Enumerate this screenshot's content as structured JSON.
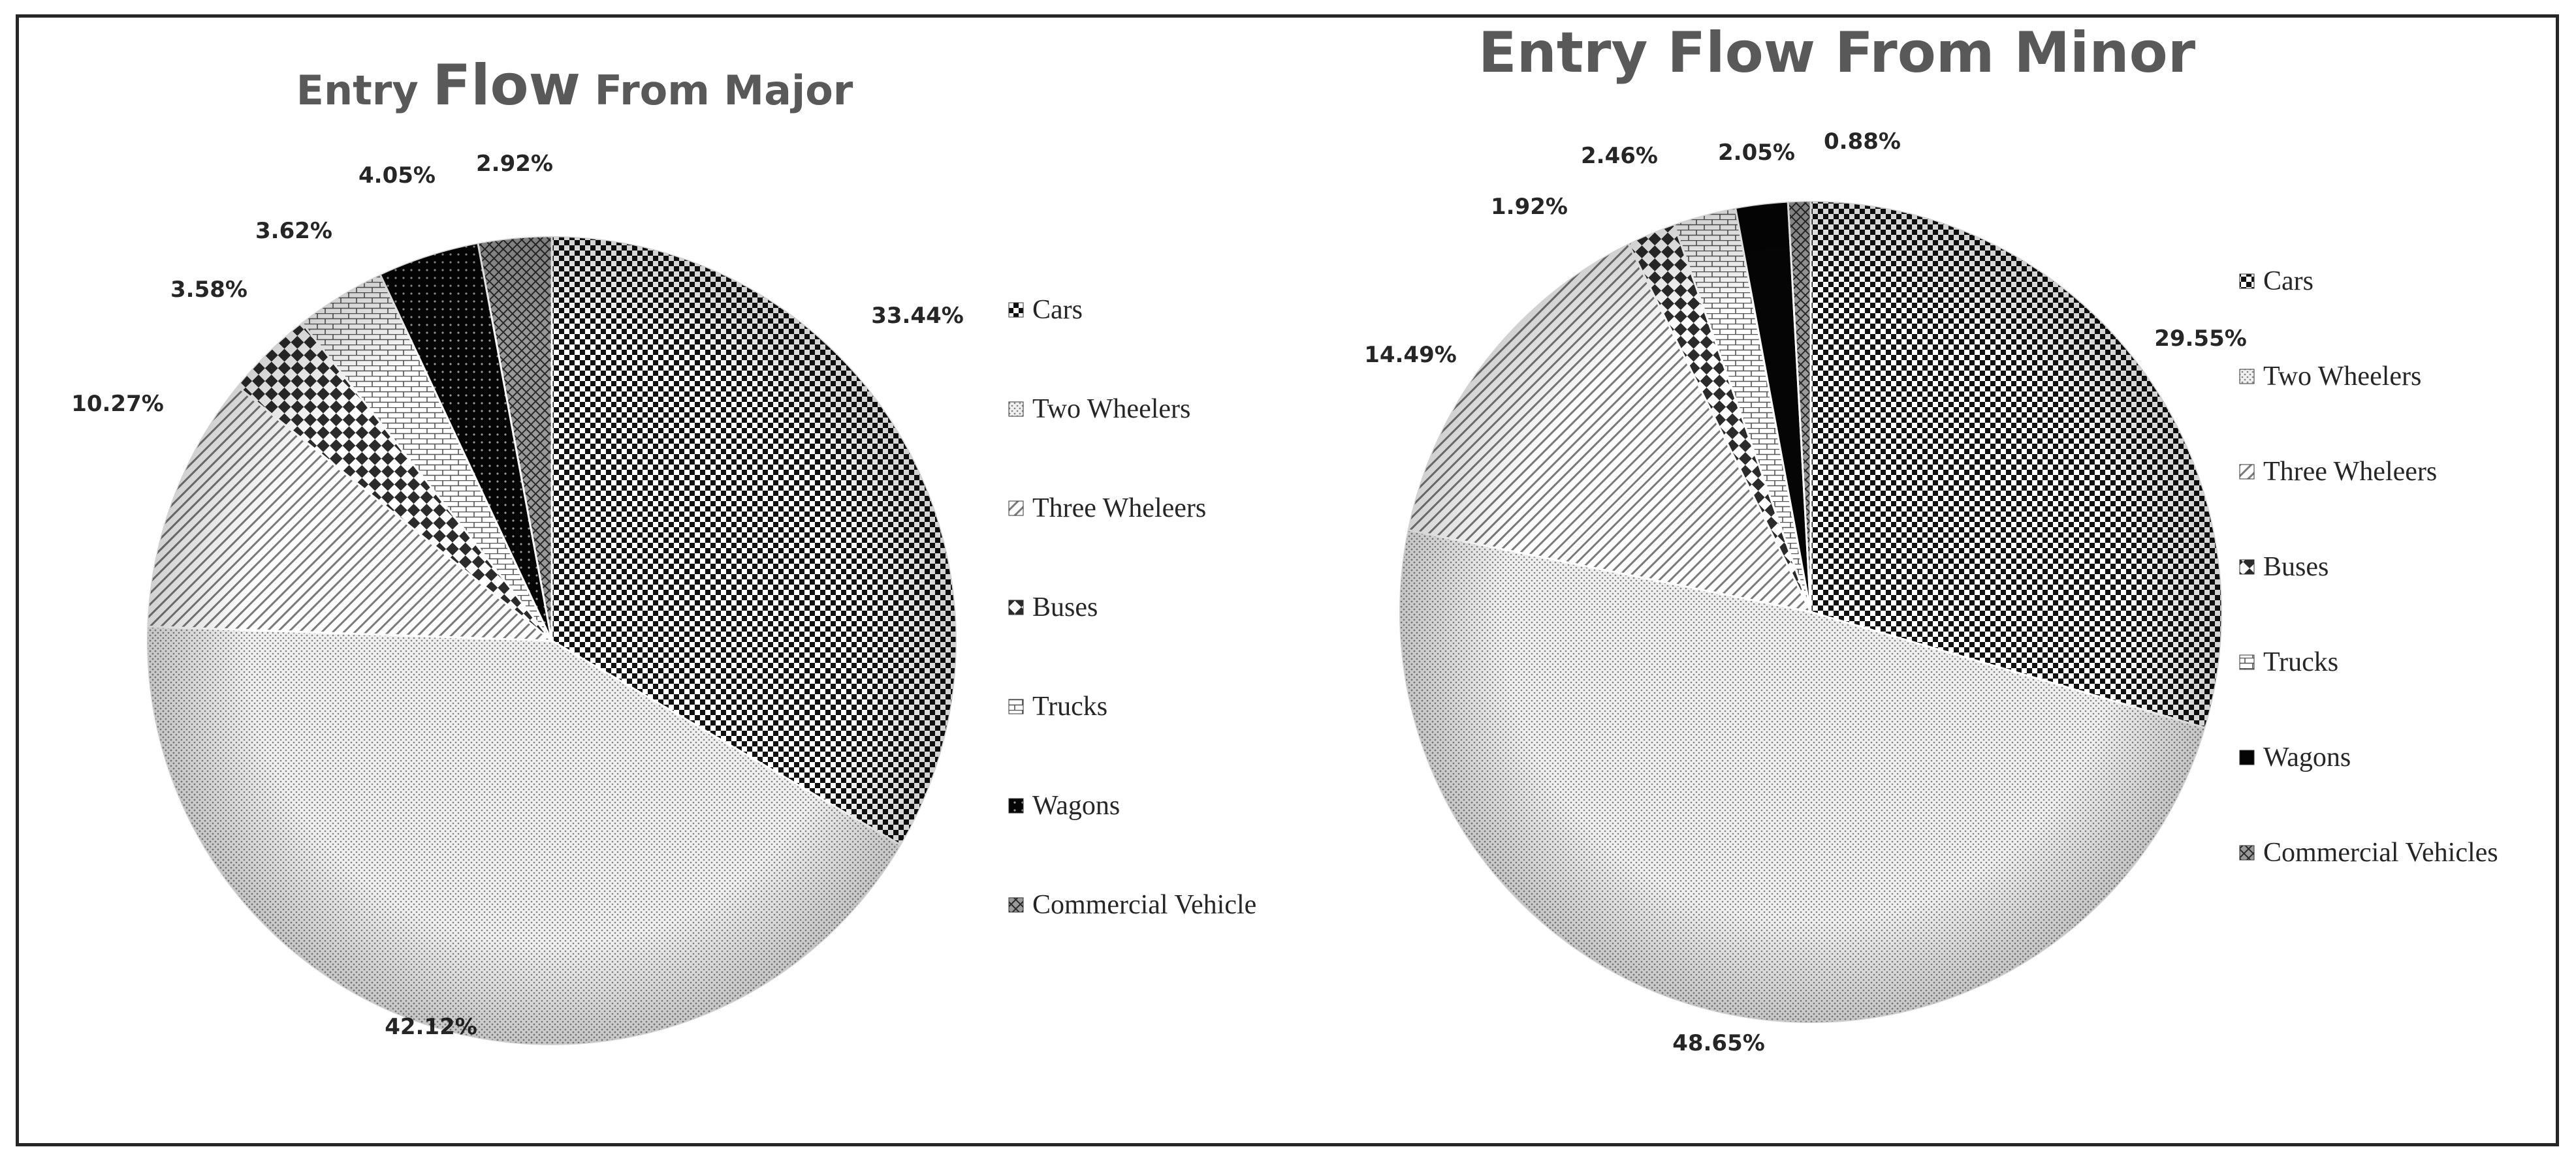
{
  "colors": {
    "ink": "#000000",
    "text": "#262626",
    "title": "#595959",
    "border": "#262626"
  },
  "chart_data": [
    {
      "type": "pie",
      "title": {
        "pre": "Entry ",
        "big": "Flow",
        "post": " From Major"
      },
      "legend_position": "right",
      "slices": [
        {
          "name": "Cars",
          "value": 33.44,
          "label": "33.44%",
          "pattern": "checker-fine"
        },
        {
          "name": "Two Wheelers",
          "value": 42.12,
          "label": "42.12%",
          "pattern": "dots-fine"
        },
        {
          "name": "Three Wheleers",
          "value": 10.27,
          "label": "10.27%",
          "pattern": "diag-lines"
        },
        {
          "name": "Buses",
          "value": 3.58,
          "label": "3.58%",
          "pattern": "checker-large"
        },
        {
          "name": "Trucks",
          "value": 3.62,
          "label": "3.62%",
          "pattern": "bricks"
        },
        {
          "name": "Wagons",
          "value": 4.05,
          "label": "4.05%",
          "pattern": "dark-dots"
        },
        {
          "name": "Commercial Vehicle",
          "value": 2.92,
          "label": "2.92%",
          "pattern": "lattice"
        }
      ]
    },
    {
      "type": "pie",
      "title": {
        "pre": "",
        "big": "Entry Flow From Minor",
        "post": ""
      },
      "legend_position": "right",
      "slices": [
        {
          "name": "Cars",
          "value": 29.55,
          "label": "29.55%",
          "pattern": "checker-fine"
        },
        {
          "name": "Two Wheelers",
          "value": 48.65,
          "label": "48.65%",
          "pattern": "dots-fine"
        },
        {
          "name": "Three Wheleers",
          "value": 14.49,
          "label": "14.49%",
          "pattern": "diag-lines"
        },
        {
          "name": "Buses",
          "value": 1.92,
          "label": "1.92%",
          "pattern": "checker-large"
        },
        {
          "name": "Trucks",
          "value": 2.46,
          "label": "2.46%",
          "pattern": "bricks"
        },
        {
          "name": "Wagons",
          "value": 2.05,
          "label": "2.05%",
          "pattern": "solid"
        },
        {
          "name": "Commercial Vehicles",
          "value": 0.88,
          "label": "0.88%",
          "pattern": "lattice"
        }
      ]
    }
  ]
}
